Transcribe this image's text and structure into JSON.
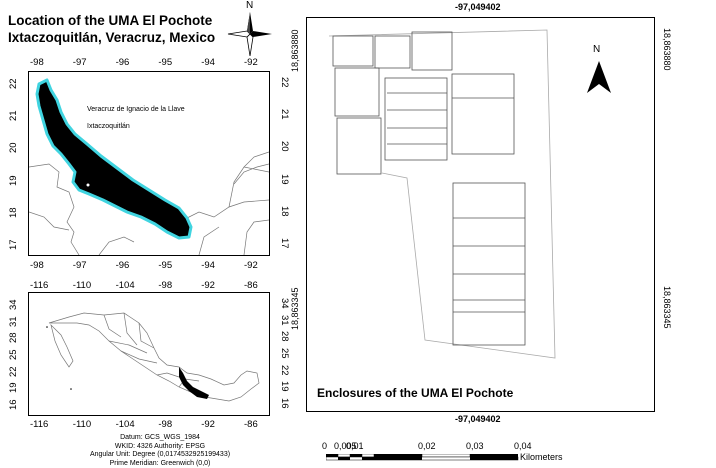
{
  "title_line1": "Location of the UMA El Pochote",
  "title_line2": "Ixtaczoquitlán, Veracruz, Mexico",
  "compass_n": "N",
  "veracruz_map": {
    "top_ticks": [
      "-98",
      "-97",
      "-96",
      "-95",
      "-94",
      "-92"
    ],
    "bottom_ticks": [
      "-98",
      "-97",
      "-96",
      "-95",
      "-94",
      "-92"
    ],
    "left_ticks": [
      "22",
      "21",
      "20",
      "19",
      "18",
      "17"
    ],
    "right_ticks": [
      "22",
      "21",
      "20",
      "19",
      "18",
      "17"
    ],
    "label_state": "Veracruz de Ignacio de la Llave",
    "label_town": "Ixtaczoquitlán",
    "highlight_color": "#000000",
    "outline_color": "#40d4e0"
  },
  "mexico_map": {
    "top_ticks": [
      "-116",
      "-110",
      "-104",
      "-98",
      "-92",
      "-86"
    ],
    "bottom_ticks": [
      "-116",
      "-110",
      "-104",
      "-98",
      "-92",
      "-86"
    ],
    "left_ticks": [
      "34",
      "31",
      "28",
      "25",
      "22",
      "19",
      "16"
    ],
    "right_ticks": [
      "34",
      "31",
      "28",
      "25",
      "22",
      "19",
      "16"
    ]
  },
  "datum": {
    "line1": "Datum: GCS_WGS_1984",
    "line2": "WKID: 4326 Authority: EPSG",
    "line3": "Angular Unit: Degree (0,0174532925199433)",
    "line4": "Prime Meridian: Greenwich (0,0)"
  },
  "enclosure_map": {
    "top_coord": "-97,049402",
    "bottom_coord": "-97,049402",
    "left_top_coord": "18,863880",
    "right_top_coord": "18,863880",
    "left_bottom_coord": "18,863345",
    "right_bottom_coord": "18,863345",
    "north": "N",
    "caption": "Enclosures of the UMA El Pochote"
  },
  "scalebar": {
    "labels": [
      "0",
      "0,005",
      "0,01",
      "0,02",
      "0,03",
      "0,04"
    ],
    "unit": "Kilometers"
  }
}
